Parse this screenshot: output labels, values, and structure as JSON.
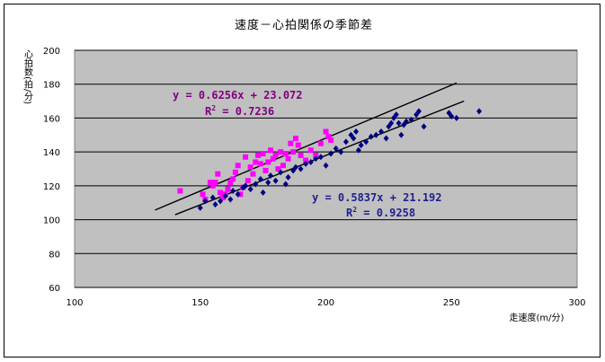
{
  "chart_data": {
    "type": "scatter",
    "title": "速度－心拍関係の季節差",
    "xlabel": "走速度(m/分)",
    "ylabel": "心拍数(拍/分)",
    "xlim": [
      100,
      300
    ],
    "ylim": [
      60,
      200
    ],
    "xticks": [
      "100",
      "150",
      "200",
      "250",
      "300"
    ],
    "yticks": [
      "60",
      "80",
      "100",
      "120",
      "140",
      "160",
      "180",
      "200"
    ],
    "grid": "horizontal",
    "plot_background": "#c0c0c0",
    "series": [
      {
        "color": "#ff00ff",
        "marker": "square",
        "trendline": {
          "slope": 0.6256,
          "intercept": 23.072,
          "x_range": [
            132,
            252
          ]
        },
        "equation": "y = 0.6256x + 23.072",
        "r2_prefix": "R",
        "r2_sup": "2",
        "r2_suffix": " = 0.7236",
        "points": [
          [
            142,
            117
          ],
          [
            151,
            115
          ],
          [
            152,
            112
          ],
          [
            154,
            122
          ],
          [
            155,
            120
          ],
          [
            156,
            122
          ],
          [
            157,
            127
          ],
          [
            158,
            116
          ],
          [
            159,
            113
          ],
          [
            160,
            115
          ],
          [
            161,
            118
          ],
          [
            162,
            122
          ],
          [
            163,
            124
          ],
          [
            164,
            128
          ],
          [
            165,
            132
          ],
          [
            166,
            115
          ],
          [
            167,
            119
          ],
          [
            168,
            137
          ],
          [
            169,
            123
          ],
          [
            170,
            131
          ],
          [
            171,
            127
          ],
          [
            172,
            134
          ],
          [
            173,
            138
          ],
          [
            174,
            133
          ],
          [
            175,
            139
          ],
          [
            176,
            129
          ],
          [
            177,
            134
          ],
          [
            178,
            141
          ],
          [
            179,
            136
          ],
          [
            180,
            138
          ],
          [
            181,
            130
          ],
          [
            182,
            140
          ],
          [
            183,
            132
          ],
          [
            184,
            139
          ],
          [
            185,
            136
          ],
          [
            186,
            145
          ],
          [
            187,
            140
          ],
          [
            188,
            148
          ],
          [
            189,
            144
          ],
          [
            190,
            138
          ],
          [
            192,
            135
          ],
          [
            194,
            141
          ],
          [
            196,
            138
          ],
          [
            198,
            145
          ],
          [
            200,
            152
          ],
          [
            201,
            149
          ],
          [
            202,
            147
          ]
        ]
      },
      {
        "color": "#000080",
        "marker": "diamond",
        "trendline": {
          "slope": 0.5837,
          "intercept": 21.192,
          "x_range": [
            140,
            255
          ]
        },
        "equation": "y = 0.5837x + 21.192",
        "r2_prefix": "R",
        "r2_sup": "2",
        "r2_suffix": " = 0.9258",
        "points": [
          [
            150,
            107
          ],
          [
            152,
            111
          ],
          [
            155,
            113
          ],
          [
            156,
            109
          ],
          [
            158,
            111
          ],
          [
            160,
            114
          ],
          [
            162,
            112
          ],
          [
            163,
            117
          ],
          [
            165,
            115
          ],
          [
            167,
            119
          ],
          [
            168,
            120
          ],
          [
            170,
            118
          ],
          [
            172,
            121
          ],
          [
            174,
            124
          ],
          [
            175,
            116
          ],
          [
            177,
            122
          ],
          [
            178,
            126
          ],
          [
            180,
            123
          ],
          [
            182,
            128
          ],
          [
            184,
            121
          ],
          [
            185,
            125
          ],
          [
            187,
            129
          ],
          [
            188,
            131
          ],
          [
            190,
            130
          ],
          [
            192,
            133
          ],
          [
            194,
            134
          ],
          [
            196,
            136
          ],
          [
            198,
            137
          ],
          [
            200,
            132
          ],
          [
            202,
            139
          ],
          [
            204,
            142
          ],
          [
            206,
            140
          ],
          [
            208,
            146
          ],
          [
            210,
            150
          ],
          [
            211,
            148
          ],
          [
            212,
            152
          ],
          [
            213,
            141
          ],
          [
            214,
            144
          ],
          [
            216,
            146
          ],
          [
            218,
            149
          ],
          [
            220,
            150
          ],
          [
            222,
            152
          ],
          [
            224,
            148
          ],
          [
            225,
            155
          ],
          [
            226,
            157
          ],
          [
            227,
            160
          ],
          [
            228,
            162
          ],
          [
            229,
            157
          ],
          [
            230,
            150
          ],
          [
            231,
            156
          ],
          [
            232,
            158
          ],
          [
            234,
            159
          ],
          [
            236,
            162
          ],
          [
            237,
            164
          ],
          [
            239,
            155
          ],
          [
            249,
            163
          ],
          [
            250,
            161
          ],
          [
            252,
            160
          ],
          [
            261,
            164
          ]
        ]
      }
    ]
  }
}
